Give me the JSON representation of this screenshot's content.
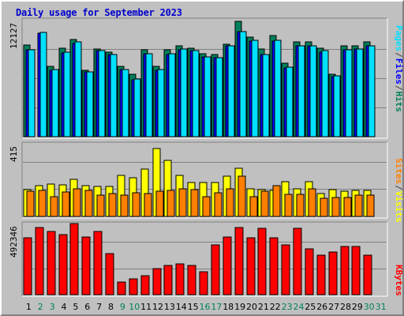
{
  "title": "Daily usage for September 2023",
  "colors": {
    "hits": "#00805c",
    "files": "#0000ff",
    "pages": "#00e0ff",
    "visits": "#ffff00",
    "sites": "#ff8000",
    "kbytes": "#ff0000",
    "weekday": "#000000",
    "weekend": "#00805c",
    "plot_background": "#c0c0c0",
    "frame_background": "#c0c0c0",
    "gridline": "#808080"
  },
  "legend": {
    "top": [
      "Pages",
      "Files",
      "Hits"
    ],
    "middle": [
      "Sites",
      "Visits"
    ],
    "bottom": [
      "KBytes"
    ],
    "separator": "/"
  },
  "chart_data": [
    {
      "type": "bar",
      "panel": "top",
      "ymax_label": "12127",
      "ylim": [
        0,
        12127
      ],
      "grid": true,
      "categories": [
        "1",
        "2",
        "3",
        "4",
        "5",
        "6",
        "7",
        "8",
        "9",
        "10",
        "11",
        "12",
        "13",
        "14",
        "15",
        "16",
        "17",
        "18",
        "19",
        "20",
        "21",
        "22",
        "23",
        "24",
        "25",
        "26",
        "27",
        "28",
        "29",
        "30",
        "31"
      ],
      "series": [
        {
          "name": "Hits",
          "color_key": "hits",
          "values": [
            9500,
            null,
            7300,
            9200,
            10100,
            6900,
            9100,
            8800,
            7300,
            6500,
            9000,
            7300,
            9000,
            9400,
            9200,
            8600,
            8500,
            9600,
            12000,
            10300,
            9100,
            10500,
            7600,
            9800,
            9800,
            9200,
            6500,
            9400,
            9400,
            9800,
            null
          ]
        },
        {
          "name": "Files",
          "color_key": "files",
          "values": [
            9000,
            10700,
            6900,
            8700,
            9700,
            6700,
            8900,
            8500,
            7000,
            5900,
            8600,
            6900,
            8500,
            9000,
            8900,
            8300,
            8200,
            9400,
            10900,
            9900,
            8500,
            9900,
            7100,
            9400,
            9400,
            8800,
            6200,
            9000,
            9100,
            9400,
            null
          ]
        },
        {
          "name": "Pages",
          "color_key": "pages",
          "values": [
            9000,
            10800,
            7000,
            8800,
            9800,
            6700,
            8900,
            8500,
            7000,
            6000,
            8600,
            7000,
            8600,
            9100,
            8900,
            8300,
            8200,
            9400,
            10900,
            10000,
            8500,
            10000,
            7200,
            9400,
            9400,
            8900,
            6300,
            9000,
            9100,
            9400,
            null
          ]
        }
      ]
    },
    {
      "type": "bar",
      "panel": "middle",
      "ymax_label": "415",
      "ylim": [
        0,
        415
      ],
      "grid": true,
      "categories": [
        "1",
        "2",
        "3",
        "4",
        "5",
        "6",
        "7",
        "8",
        "9",
        "10",
        "11",
        "12",
        "13",
        "14",
        "15",
        "16",
        "17",
        "18",
        "19",
        "20",
        "21",
        "22",
        "23",
        "24",
        "25",
        "26",
        "27",
        "28",
        "29",
        "30",
        "31"
      ],
      "series": [
        {
          "name": "Visits",
          "color_key": "visits",
          "values": [
            155,
            175,
            185,
            180,
            210,
            175,
            170,
            170,
            235,
            220,
            270,
            390,
            320,
            235,
            195,
            195,
            195,
            230,
            275,
            160,
            155,
            150,
            200,
            160,
            200,
            130,
            155,
            145,
            150,
            150,
            null
          ]
        },
        {
          "name": "Sites",
          "color_key": "sites",
          "values": [
            145,
            150,
            115,
            140,
            160,
            150,
            120,
            130,
            120,
            135,
            130,
            145,
            150,
            160,
            155,
            115,
            135,
            160,
            230,
            115,
            145,
            175,
            125,
            125,
            160,
            105,
            110,
            110,
            120,
            120,
            null
          ]
        }
      ]
    },
    {
      "type": "bar",
      "panel": "bottom",
      "ymax_label": "492346",
      "ylim": [
        0,
        492346
      ],
      "grid": true,
      "categories": [
        "1",
        "2",
        "3",
        "4",
        "5",
        "6",
        "7",
        "8",
        "9",
        "10",
        "11",
        "12",
        "13",
        "14",
        "15",
        "16",
        "17",
        "18",
        "19",
        "20",
        "21",
        "22",
        "23",
        "24",
        "25",
        "26",
        "27",
        "28",
        "29",
        "30",
        "31"
      ],
      "series": [
        {
          "name": "KBytes",
          "color_key": "kbytes",
          "values": [
            395000,
            465000,
            435000,
            415000,
            495000,
            400000,
            440000,
            285000,
            90000,
            110000,
            130000,
            180000,
            205000,
            215000,
            200000,
            160000,
            345000,
            400000,
            465000,
            395000,
            460000,
            395000,
            345000,
            460000,
            315000,
            275000,
            295000,
            335000,
            335000,
            275000,
            null
          ]
        }
      ]
    }
  ],
  "day_labels": {
    "values": [
      "1",
      "2",
      "3",
      "4",
      "5",
      "6",
      "7",
      "8",
      "9",
      "10",
      "11",
      "12",
      "13",
      "14",
      "15",
      "16",
      "17",
      "18",
      "19",
      "20",
      "21",
      "22",
      "23",
      "24",
      "25",
      "26",
      "27",
      "28",
      "29",
      "30",
      "31"
    ],
    "weekend": [
      false,
      true,
      true,
      false,
      false,
      false,
      false,
      false,
      true,
      true,
      false,
      false,
      false,
      false,
      false,
      true,
      true,
      false,
      false,
      false,
      false,
      false,
      true,
      true,
      false,
      false,
      false,
      false,
      false,
      true,
      true
    ]
  }
}
